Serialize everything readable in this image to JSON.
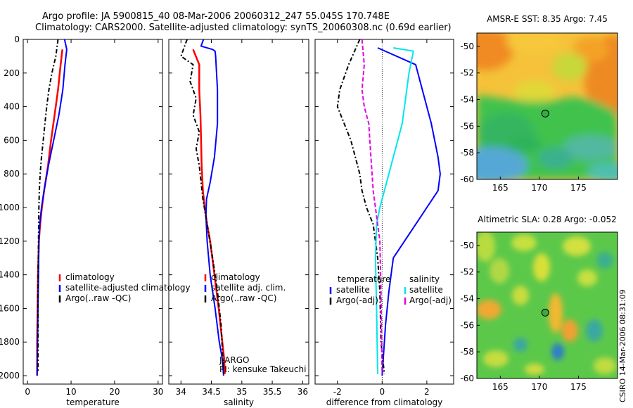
{
  "header": {
    "line1": "Argo profile: JA 5900815_40 08-Mar-2006 20060312_247 55.045S 170.748E",
    "line2": "Climatology: CARS2000. Satellite-adjusted climatology: synTS_20060308.nc (0.69d earlier)"
  },
  "colors": {
    "clim": "#ff0000",
    "sat": "#0000ff",
    "argo": "#000000",
    "sat_sal": "#00e5ee",
    "argo_sal": "#e400e4"
  },
  "chart_data": [
    {
      "type": "line",
      "id": "temperature",
      "xlabel": "temperature",
      "ylabel": "",
      "xlim": [
        -1,
        31
      ],
      "ylim": [
        2050,
        0
      ],
      "xticks": [
        0,
        10,
        20,
        30
      ],
      "yticks": [
        0,
        200,
        400,
        600,
        800,
        1000,
        1200,
        1400,
        1600,
        1800,
        2000
      ],
      "y_reversed": true,
      "legend": [
        "climatology",
        "satellite-adjusted climatology",
        "Argo(..raw -QC)"
      ],
      "series": [
        {
          "name": "climatology",
          "color": "#ff0000",
          "dash": "none",
          "width": 2.5,
          "x": [
            8.0,
            7.6,
            7.0,
            6.2,
            5.4,
            4.7,
            3.8,
            3.3,
            2.9,
            2.6,
            2.4,
            2.3,
            2.2,
            2.2,
            2.2
          ],
          "y": [
            60,
            150,
            300,
            450,
            600,
            750,
            900,
            1000,
            1100,
            1200,
            1400,
            1600,
            1800,
            1900,
            2000
          ]
        },
        {
          "name": "satellite-adjusted climatology",
          "color": "#0000ff",
          "dash": "none",
          "width": 2,
          "x": [
            8.5,
            9.0,
            8.6,
            8.1,
            7.2,
            6.0,
            4.8,
            3.8,
            3.2,
            2.8,
            2.6,
            2.5,
            2.4,
            2.3,
            2.2
          ],
          "y": [
            0,
            60,
            150,
            300,
            450,
            600,
            750,
            900,
            1000,
            1100,
            1200,
            1400,
            1600,
            1800,
            2000
          ]
        },
        {
          "name": "Argo(..raw -QC)",
          "color": "#000000",
          "dash": "6,3,2,3",
          "width": 2,
          "x": [
            7.0,
            6.5,
            5.6,
            4.9,
            4.4,
            4.0,
            3.6,
            3.2,
            2.9,
            2.7,
            2.6,
            2.5,
            2.4,
            2.4,
            2.4
          ],
          "y": [
            0,
            100,
            200,
            300,
            400,
            500,
            600,
            700,
            800,
            900,
            1000,
            1200,
            1500,
            1800,
            1980
          ]
        }
      ]
    },
    {
      "type": "line",
      "id": "salinity",
      "xlabel": "salinity",
      "ylabel": "",
      "xlim": [
        33.8,
        36.1
      ],
      "ylim": [
        2050,
        0
      ],
      "xticks": [
        34,
        34.5,
        35,
        35.5,
        36
      ],
      "y_reversed": true,
      "legend": [
        "climatology",
        "satellite adj. clim.",
        "Argo(..raw -QC)"
      ],
      "annotation": [
        "J-ARGO",
        "PI: kensuke Takeuchi"
      ],
      "series": [
        {
          "name": "climatology",
          "color": "#ff0000",
          "dash": "none",
          "width": 2.5,
          "x": [
            34.2,
            34.3,
            34.3,
            34.32,
            34.33,
            34.34,
            34.36,
            34.39,
            34.43,
            34.48,
            34.55,
            34.62,
            34.68,
            34.71,
            34.72
          ],
          "y": [
            60,
            150,
            300,
            450,
            600,
            750,
            900,
            1000,
            1100,
            1200,
            1400,
            1600,
            1800,
            1900,
            1990
          ]
        },
        {
          "name": "satellite adj. clim.",
          "color": "#0000ff",
          "dash": "none",
          "width": 2,
          "x": [
            34.37,
            34.33,
            34.52,
            34.56,
            34.57,
            34.6,
            34.6,
            34.55,
            34.48,
            34.42,
            34.41,
            34.43,
            34.48,
            34.56,
            34.63,
            34.68,
            34.7
          ],
          "y": [
            0,
            40,
            60,
            70,
            100,
            300,
            500,
            700,
            850,
            950,
            1050,
            1200,
            1400,
            1600,
            1800,
            1900,
            2000
          ]
        },
        {
          "name": "Argo(..raw -QC)",
          "color": "#000000",
          "dash": "6,3,2,3",
          "width": 2,
          "x": [
            34.1,
            34.0,
            34.2,
            34.15,
            34.25,
            34.2,
            34.3,
            34.25,
            34.3,
            34.33,
            34.36,
            34.43,
            34.52,
            34.6,
            34.66,
            34.7
          ],
          "y": [
            0,
            100,
            150,
            250,
            350,
            450,
            550,
            650,
            750,
            850,
            950,
            1100,
            1300,
            1500,
            1700,
            1990
          ]
        }
      ]
    },
    {
      "type": "line",
      "id": "difference",
      "xlabel": "difference from climatology",
      "ylabel": "",
      "xlim": [
        -3,
        3.2
      ],
      "ylim": [
        2050,
        0
      ],
      "xticks": [
        -2,
        0,
        2
      ],
      "y_reversed": true,
      "legend_temperature": [
        "temperature",
        "satellite",
        "Argo(-adj)"
      ],
      "legend_salinity": [
        "salinity",
        "satellite",
        "Argo(-adj)"
      ],
      "series": [
        {
          "name": "temperature satellite",
          "color": "#0000ff",
          "dash": "none",
          "width": 2,
          "x": [
            -0.2,
            1.5,
            1.8,
            2.2,
            2.5,
            2.6,
            2.5,
            2.0,
            1.5,
            1.0,
            0.5,
            0.3,
            0.15,
            0.05,
            0.0
          ],
          "y": [
            50,
            150,
            300,
            500,
            700,
            800,
            900,
            1000,
            1100,
            1200,
            1300,
            1500,
            1700,
            1900,
            2000
          ]
        },
        {
          "name": "temperature Argo(-adj)",
          "color": "#000000",
          "dash": "6,3,2,3",
          "width": 2,
          "x": [
            -1.0,
            -1.5,
            -1.9,
            -2.0,
            -1.7,
            -1.4,
            -1.2,
            -1.0,
            -0.9,
            -0.7,
            -0.4,
            -0.2,
            -0.1,
            -0.05,
            0.1
          ],
          "y": [
            0,
            150,
            300,
            400,
            500,
            600,
            700,
            800,
            900,
            1000,
            1100,
            1300,
            1500,
            1800,
            1990
          ]
        },
        {
          "name": "salinity satellite",
          "color": "#00e5ee",
          "dash": "none",
          "width": 2,
          "x": [
            0.5,
            1.4,
            1.2,
            1.0,
            0.9,
            0.7,
            0.5,
            0.3,
            0.1,
            -0.1,
            -0.25,
            -0.3,
            -0.25,
            -0.2
          ],
          "y": [
            50,
            70,
            200,
            400,
            500,
            600,
            700,
            800,
            900,
            1000,
            1100,
            1300,
            1600,
            1990
          ]
        },
        {
          "name": "salinity Argo(-adj)",
          "color": "#e400e4",
          "dash": "6,3",
          "width": 2,
          "x": [
            -0.9,
            -0.8,
            -0.9,
            -0.8,
            -0.6,
            -0.55,
            -0.5,
            -0.45,
            -0.4,
            -0.3,
            -0.1,
            -0.05,
            0.0
          ],
          "y": [
            0,
            150,
            300,
            400,
            500,
            600,
            700,
            800,
            900,
            1000,
            1200,
            1500,
            1990
          ]
        }
      ]
    },
    {
      "type": "heatmap",
      "id": "sst_map",
      "title": "AMSR-E SST: 8.35 Argo: 7.45",
      "xlim": [
        162,
        180
      ],
      "ylim": [
        -60,
        -49
      ],
      "xticks": [
        165,
        170,
        175
      ],
      "yticks": [
        -50,
        -52,
        -54,
        -56,
        -58,
        -60
      ],
      "marker": {
        "lon": 170.75,
        "lat": -55.05
      }
    },
    {
      "type": "heatmap",
      "id": "sla_map",
      "title": "Altimetric SLA: 0.28 Argo: -0.052",
      "xlim": [
        162,
        180
      ],
      "ylim": [
        -60,
        -49
      ],
      "xticks": [
        165,
        170,
        175
      ],
      "yticks": [
        -50,
        -52,
        -54,
        -56,
        -58,
        -60
      ],
      "marker": {
        "lon": 170.75,
        "lat": -55.05
      }
    }
  ],
  "credit": "CSIRO 14-Mar-2006 08:31:09"
}
